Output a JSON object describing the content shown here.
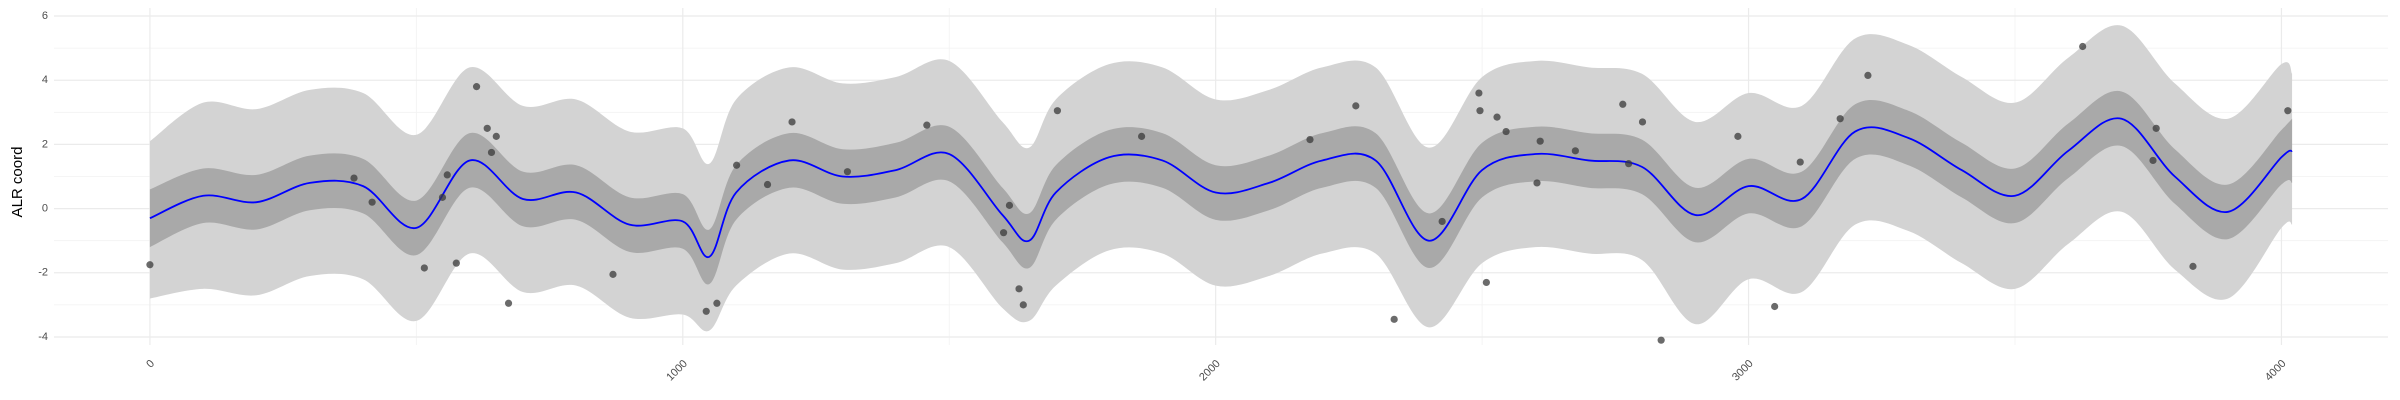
{
  "chart_data": {
    "type": "gp-fit",
    "y_label": "ALR coord",
    "xlim": [
      -180,
      4200
    ],
    "ylim": [
      -4.25,
      6.25
    ],
    "xticks": [
      0,
      1000,
      2000,
      3000,
      4000
    ],
    "yticks": [
      -4,
      -2,
      0,
      2,
      4,
      6
    ],
    "grid": true,
    "line_color": "#0000ff",
    "inner_color": "#a9a9a9",
    "outer_color": "#d3d3d3",
    "point_color": "#3a3a3a",
    "fit": {
      "x": [
        0,
        100,
        200,
        300,
        400,
        500,
        600,
        700,
        800,
        900,
        1000,
        1050,
        1100,
        1200,
        1300,
        1400,
        1500,
        1600,
        1650,
        1700,
        1800,
        1900,
        2000,
        2100,
        2200,
        2300,
        2400,
        2500,
        2600,
        2700,
        2800,
        2900,
        3000,
        3100,
        3200,
        3300,
        3400,
        3500,
        3600,
        3700,
        3800,
        3900,
        4000,
        4020
      ],
      "mean": [
        -0.3,
        0.4,
        0.2,
        0.8,
        0.7,
        -0.6,
        1.5,
        0.3,
        0.5,
        -0.5,
        -0.4,
        -1.5,
        0.5,
        1.5,
        1.0,
        1.2,
        1.7,
        -0.2,
        -1.0,
        0.5,
        1.6,
        1.5,
        0.5,
        0.8,
        1.5,
        1.5,
        -1.0,
        1.2,
        1.7,
        1.5,
        1.3,
        -0.2,
        0.7,
        0.3,
        2.4,
        2.2,
        1.2,
        0.4,
        1.8,
        2.8,
        1.0,
        -0.1,
        1.6,
        1.8
      ],
      "inner_lower": [
        -1.2,
        -0.45,
        -0.65,
        -0.05,
        -0.15,
        -1.45,
        0.65,
        -0.55,
        -0.35,
        -1.35,
        -1.25,
        -2.35,
        -0.35,
        0.65,
        0.15,
        0.35,
        0.85,
        -1.05,
        -1.85,
        -0.35,
        0.75,
        0.65,
        -0.35,
        -0.05,
        0.65,
        0.65,
        -1.85,
        0.35,
        0.85,
        0.65,
        0.45,
        -1.05,
        -0.15,
        -0.55,
        1.55,
        1.35,
        0.35,
        -0.45,
        0.95,
        1.95,
        0.15,
        -0.95,
        0.75,
        0.8
      ],
      "inner_upper": [
        0.6,
        1.25,
        1.05,
        1.65,
        1.55,
        0.25,
        2.35,
        1.15,
        1.35,
        0.35,
        0.45,
        -0.65,
        1.35,
        2.35,
        1.85,
        2.05,
        2.55,
        0.65,
        -0.15,
        1.35,
        2.45,
        2.35,
        1.35,
        1.65,
        2.35,
        2.35,
        -0.15,
        2.05,
        2.55,
        2.35,
        2.15,
        0.65,
        1.55,
        1.15,
        3.25,
        3.05,
        2.05,
        1.25,
        2.65,
        3.65,
        1.85,
        0.75,
        2.45,
        2.8
      ],
      "outer_lower": [
        -2.8,
        -2.5,
        -2.7,
        -2.1,
        -2.2,
        -3.5,
        -1.4,
        -2.6,
        -2.4,
        -3.4,
        -3.3,
        -3.8,
        -2.4,
        -1.4,
        -1.9,
        -1.7,
        -1.2,
        -3.1,
        -3.5,
        -2.4,
        -1.3,
        -1.4,
        -2.4,
        -2.1,
        -1.4,
        -1.4,
        -3.7,
        -1.7,
        -1.2,
        -1.4,
        -1.6,
        -3.6,
        -2.2,
        -2.6,
        -0.5,
        -0.7,
        -1.7,
        -2.5,
        -1.1,
        -0.1,
        -1.9,
        -2.8,
        -0.6,
        -0.5
      ],
      "outer_upper": [
        2.1,
        3.3,
        3.1,
        3.7,
        3.6,
        2.3,
        4.4,
        3.2,
        3.4,
        2.4,
        2.5,
        1.4,
        3.4,
        4.4,
        3.9,
        4.1,
        4.6,
        2.7,
        1.9,
        3.4,
        4.5,
        4.4,
        3.4,
        3.7,
        4.4,
        4.4,
        1.9,
        4.1,
        4.6,
        4.4,
        4.2,
        2.7,
        3.6,
        3.2,
        5.3,
        5.1,
        4.1,
        3.3,
        4.7,
        5.7,
        3.9,
        2.8,
        4.5,
        4.2
      ]
    },
    "points": {
      "x": [
        0,
        383,
        417,
        515,
        549,
        558,
        575,
        613,
        633,
        641,
        650,
        673,
        869,
        1044,
        1064,
        1101,
        1159,
        1205,
        1309,
        1458,
        1602,
        1613,
        1631,
        1639,
        1703,
        1861,
        2177,
        2263,
        2335,
        2425,
        2494,
        2496,
        2508,
        2528,
        2545,
        2603,
        2609,
        2675,
        2764,
        2775,
        2801,
        2836,
        2980,
        3049,
        3097,
        3172,
        3224,
        3627,
        3765,
        3759,
        3834,
        4012
      ],
      "y": [
        -1.75,
        0.95,
        0.2,
        -1.85,
        0.35,
        1.05,
        -1.7,
        3.8,
        2.5,
        1.75,
        2.25,
        -2.95,
        -2.05,
        -3.2,
        -2.95,
        1.35,
        0.75,
        2.7,
        1.15,
        2.6,
        -0.75,
        0.1,
        -2.5,
        -3.0,
        3.05,
        2.25,
        2.15,
        3.2,
        -3.45,
        -0.4,
        3.6,
        3.05,
        -2.3,
        2.85,
        2.4,
        0.8,
        2.1,
        1.8,
        3.25,
        1.4,
        2.7,
        -4.1,
        2.25,
        -3.05,
        1.45,
        2.8,
        4.15,
        5.05,
        2.5,
        1.5,
        -1.8,
        3.05
      ]
    }
  }
}
